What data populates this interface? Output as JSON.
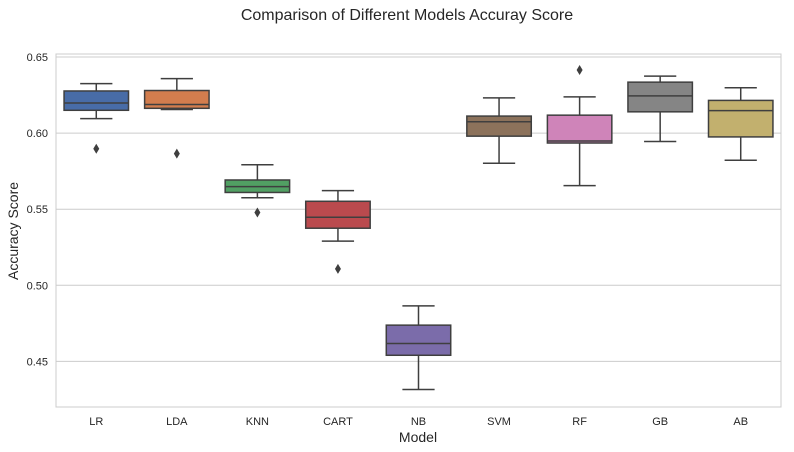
{
  "chart_data": {
    "type": "box",
    "title": "Comparison of Different Models Accuray Score",
    "xlabel": "Model",
    "ylabel": "Accuracy Score",
    "ylim": [
      0.42,
      0.652
    ],
    "yticks": [
      "0.45",
      "0.50",
      "0.55",
      "0.60",
      "0.65"
    ],
    "grid": true,
    "categories": [
      "LR",
      "LDA",
      "KNN",
      "CART",
      "NB",
      "SVM",
      "RF",
      "GB",
      "AB"
    ],
    "boxes": [
      {
        "label": "LR",
        "color": "#4c72b0",
        "whisker_low": 0.6095,
        "q1": 0.615,
        "median": 0.6198,
        "q3": 0.6277,
        "whisker_high": 0.6325,
        "outliers": [
          0.5897
        ]
      },
      {
        "label": "LDA",
        "color": "#dd8452",
        "whisker_low": 0.6155,
        "q1": 0.6163,
        "median": 0.6188,
        "q3": 0.628,
        "whisker_high": 0.6358,
        "outliers": [
          0.5865
        ]
      },
      {
        "label": "KNN",
        "color": "#55a868",
        "whisker_low": 0.5575,
        "q1": 0.561,
        "median": 0.5648,
        "q3": 0.5692,
        "whisker_high": 0.5792,
        "outliers": [
          0.5478
        ]
      },
      {
        "label": "CART",
        "color": "#c44e52",
        "whisker_low": 0.529,
        "q1": 0.5375,
        "median": 0.5447,
        "q3": 0.5552,
        "whisker_high": 0.5622,
        "outliers": [
          0.5108
        ]
      },
      {
        "label": "NB",
        "color": "#8172b3",
        "whisker_low": 0.4315,
        "q1": 0.454,
        "median": 0.4617,
        "q3": 0.4738,
        "whisker_high": 0.4865,
        "outliers": []
      },
      {
        "label": "SVM",
        "color": "#937860",
        "whisker_low": 0.5802,
        "q1": 0.598,
        "median": 0.6075,
        "q3": 0.6112,
        "whisker_high": 0.6232,
        "outliers": []
      },
      {
        "label": "RF",
        "color": "#da8bc3",
        "whisker_low": 0.5655,
        "q1": 0.5935,
        "median": 0.5948,
        "q3": 0.6118,
        "whisker_high": 0.6238,
        "outliers": [
          0.6415
        ]
      },
      {
        "label": "GB",
        "color": "#8c8c8c",
        "whisker_low": 0.5945,
        "q1": 0.614,
        "median": 0.6245,
        "q3": 0.6335,
        "whisker_high": 0.6375,
        "outliers": []
      },
      {
        "label": "AB",
        "color": "#ccb974",
        "whisker_low": 0.5822,
        "q1": 0.5975,
        "median": 0.6148,
        "q3": 0.6215,
        "whisker_high": 0.6298,
        "outliers": []
      }
    ]
  }
}
